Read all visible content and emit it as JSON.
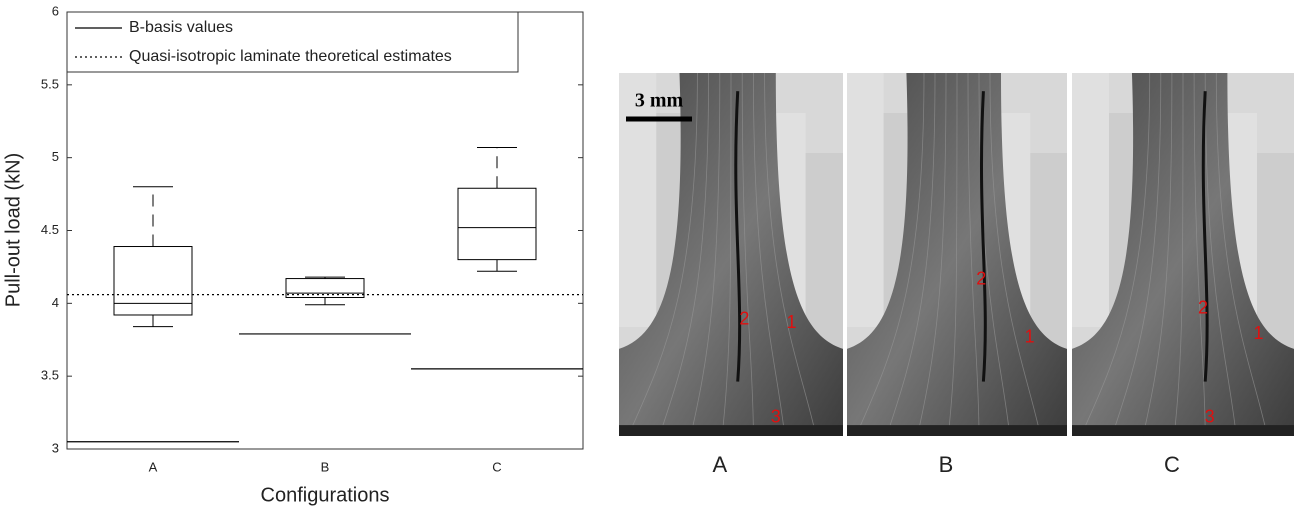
{
  "chart_data": {
    "type": "box",
    "x_label": "Configurations",
    "y_label": "Pull-out load (kN)",
    "categories": [
      "A",
      "B",
      "C"
    ],
    "whisker_low": [
      3.84,
      3.99,
      4.22
    ],
    "q1": [
      3.92,
      4.04,
      4.3
    ],
    "median": [
      4.0,
      4.07,
      4.52
    ],
    "q3": [
      4.39,
      4.17,
      4.79
    ],
    "whisker_high": [
      4.8,
      4.18,
      5.07
    ],
    "reference_lines": [
      {
        "name": "B-basis values",
        "style": "solid",
        "values": [
          3.05,
          3.79,
          3.55
        ]
      },
      {
        "name": "Quasi-isotropic laminate theoretical estimates",
        "style": "dotted",
        "values": [
          4.06
        ]
      }
    ],
    "ylim": [
      3,
      6
    ],
    "yticks": [
      3,
      3.5,
      4,
      4.5,
      5,
      5.5,
      6
    ],
    "legend": "upper left",
    "color": "#000000"
  },
  "photos": {
    "scale_bar": "3 mm",
    "panels": [
      {
        "label": "A",
        "markers": [
          "2",
          "1",
          "3"
        ]
      },
      {
        "label": "B",
        "markers": [
          "2",
          "1"
        ]
      },
      {
        "label": "C",
        "markers": [
          "2",
          "1",
          "3"
        ]
      }
    ]
  }
}
